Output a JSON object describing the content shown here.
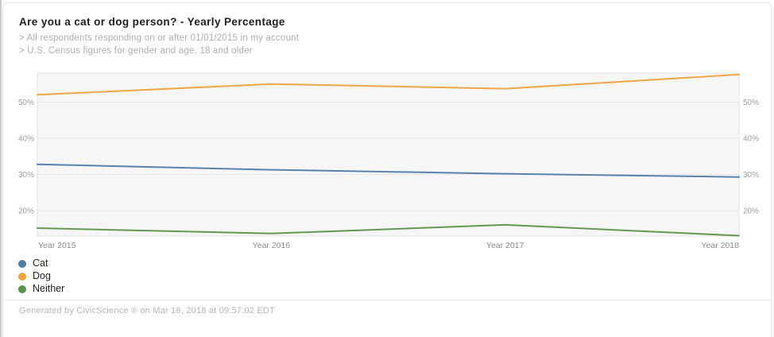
{
  "card": {
    "title": "Are you a cat or dog person? - Yearly Percentage",
    "subtitles": [
      "> All respondents responding on or after 01/01/2015 in my account",
      "> U.S. Census figures for gender and age, 18 and older"
    ],
    "footer": "Generated by CivicScience ® on Mar 16, 2018 at 09:57:02 EDT"
  },
  "colors": {
    "cat_blue": "#4d7ca7",
    "dog_orange": "#f0a23d",
    "neither_green": "#5b9349",
    "plot_background": "#f6f6f6",
    "plot_border": "#e3e3e3",
    "gridline": "#e6e6e6",
    "tick_label": "#9b9b9b",
    "x_label": "#8a8a8a"
  },
  "chart_data": {
    "type": "line",
    "x": [
      "Year 2015",
      "Year 2016",
      "Year 2017",
      "Year 2018"
    ],
    "series": [
      {
        "name": "Cat",
        "color": "#4d7ca7",
        "values": [
          32.8,
          31.3,
          30.2,
          29.3
        ]
      },
      {
        "name": "Dog",
        "color": "#f0a23d",
        "values": [
          52.0,
          55.0,
          53.7,
          57.6
        ]
      },
      {
        "name": "Neither",
        "color": "#5b9349",
        "values": [
          15.2,
          13.7,
          16.1,
          13.1
        ]
      }
    ],
    "title": "Are you a cat or dog person? - Yearly Percentage",
    "xlabel": "",
    "ylabel": "",
    "ylim": [
      13,
      58
    ],
    "yticks": [
      20,
      30,
      40,
      50
    ],
    "ytick_labels": [
      "20%",
      "30%",
      "40%",
      "50%"
    ],
    "y_axis_sides": "both",
    "grid": true,
    "legend_position": "bottom-left"
  },
  "legend": {
    "items": [
      {
        "label": "Cat",
        "color": "#4d7ca7"
      },
      {
        "label": "Dog",
        "color": "#f0a23d"
      },
      {
        "label": "Neither",
        "color": "#5b9349"
      }
    ]
  }
}
